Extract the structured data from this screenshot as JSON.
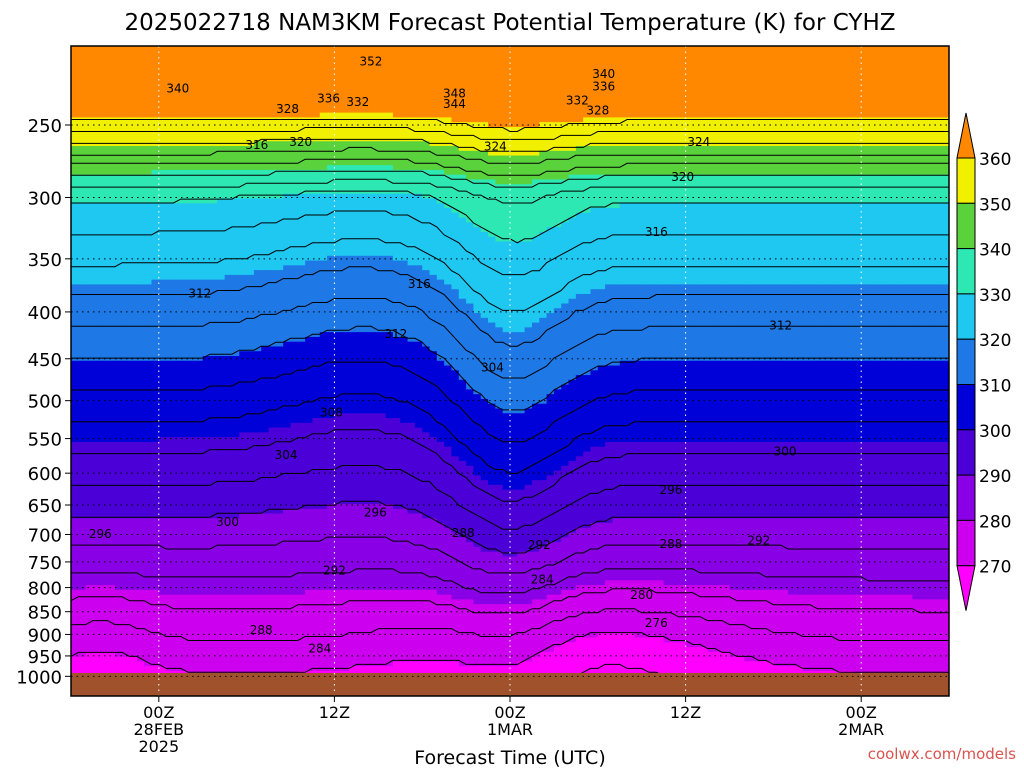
{
  "chart_data": {
    "type": "heatmap",
    "title": "2025022718 NAM3KM Forecast Potential Temperature (K) for CYHZ",
    "xlabel": "Forecast Time (UTC)",
    "ylabel": "",
    "x_ticks": [
      {
        "value": 6,
        "lines": [
          "00Z",
          "28FEB",
          "2025"
        ]
      },
      {
        "value": 18,
        "lines": [
          "12Z"
        ]
      },
      {
        "value": 30,
        "lines": [
          "00Z",
          "1MAR"
        ]
      },
      {
        "value": 42,
        "lines": [
          "12Z"
        ]
      },
      {
        "value": 54,
        "lines": [
          "00Z",
          "2MAR"
        ]
      }
    ],
    "xlim": [
      0,
      60
    ],
    "y_ticks": [
      250,
      300,
      350,
      400,
      450,
      500,
      550,
      600,
      650,
      700,
      750,
      800,
      850,
      900,
      950,
      1000
    ],
    "y_grid_dotted": [
      250,
      300,
      350,
      400,
      450,
      500,
      550,
      600,
      650,
      700,
      750,
      800,
      850,
      900,
      950,
      1000
    ],
    "ylim": [
      1010,
      200
    ],
    "y_scale": "log",
    "colorbar": {
      "levels": [
        270,
        280,
        290,
        300,
        310,
        320,
        330,
        340,
        350,
        360
      ],
      "colors": [
        "#ff00ff",
        "#cc00ee",
        "#8a00e6",
        "#4a00d6",
        "#0000d8",
        "#1e78e6",
        "#1ec8f0",
        "#2ee8b4",
        "#5ad23c",
        "#f0f000",
        "#f0b000",
        "#ff8800"
      ],
      "extend": "both"
    },
    "contour_interval": 4,
    "contour_labels": [
      {
        "x": 20.5,
        "p": 213,
        "text": "352"
      },
      {
        "x": 7.3,
        "p": 228,
        "text": "340"
      },
      {
        "x": 17.6,
        "p": 234,
        "text": "336"
      },
      {
        "x": 19.6,
        "p": 236,
        "text": "332"
      },
      {
        "x": 14.8,
        "p": 240,
        "text": "328"
      },
      {
        "x": 26.2,
        "p": 231,
        "text": "348"
      },
      {
        "x": 26.2,
        "p": 237,
        "text": "344"
      },
      {
        "x": 36.4,
        "p": 220,
        "text": "340"
      },
      {
        "x": 36.4,
        "p": 227,
        "text": "336"
      },
      {
        "x": 34.6,
        "p": 235,
        "text": "332"
      },
      {
        "x": 36.0,
        "p": 241,
        "text": "328"
      },
      {
        "x": 12.7,
        "p": 263,
        "text": "316"
      },
      {
        "x": 15.7,
        "p": 261,
        "text": "320"
      },
      {
        "x": 29.0,
        "p": 264,
        "text": "324"
      },
      {
        "x": 42.9,
        "p": 261,
        "text": "324"
      },
      {
        "x": 41.8,
        "p": 285,
        "text": "320"
      },
      {
        "x": 40.0,
        "p": 327,
        "text": "316"
      },
      {
        "x": 23.8,
        "p": 373,
        "text": "316"
      },
      {
        "x": 8.8,
        "p": 382,
        "text": "312"
      },
      {
        "x": 22.2,
        "p": 423,
        "text": "312"
      },
      {
        "x": 48.5,
        "p": 414,
        "text": "312"
      },
      {
        "x": 28.8,
        "p": 460,
        "text": "304"
      },
      {
        "x": 17.8,
        "p": 515,
        "text": "308"
      },
      {
        "x": 14.7,
        "p": 573,
        "text": "304"
      },
      {
        "x": 48.8,
        "p": 568,
        "text": "300"
      },
      {
        "x": 41.0,
        "p": 626,
        "text": "296"
      },
      {
        "x": 20.8,
        "p": 662,
        "text": "296"
      },
      {
        "x": 10.7,
        "p": 678,
        "text": "300"
      },
      {
        "x": 2.0,
        "p": 699,
        "text": "296"
      },
      {
        "x": 26.8,
        "p": 697,
        "text": "288"
      },
      {
        "x": 32.0,
        "p": 719,
        "text": "292"
      },
      {
        "x": 41.0,
        "p": 717,
        "text": "288"
      },
      {
        "x": 47.0,
        "p": 711,
        "text": "292"
      },
      {
        "x": 18.0,
        "p": 766,
        "text": "292"
      },
      {
        "x": 32.2,
        "p": 784,
        "text": "284"
      },
      {
        "x": 39.0,
        "p": 815,
        "text": "280"
      },
      {
        "x": 40.0,
        "p": 874,
        "text": "276"
      },
      {
        "x": 13.0,
        "p": 890,
        "text": "288"
      },
      {
        "x": 17.0,
        "p": 933,
        "text": "284"
      }
    ]
  },
  "watermark": "coolwx.com/models"
}
